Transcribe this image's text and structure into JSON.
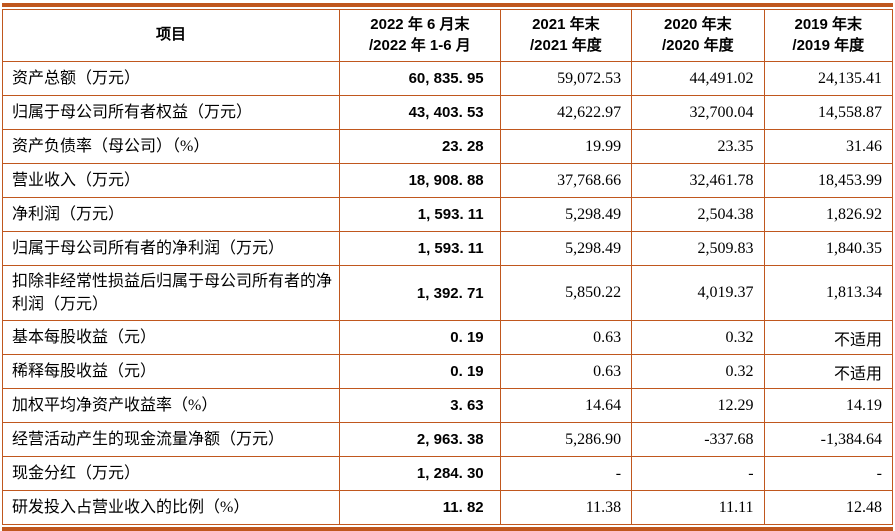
{
  "colors": {
    "border": "#C0571E",
    "text": "#000000",
    "background": "#FFFFFF"
  },
  "table": {
    "header": {
      "item_label": "项目",
      "periods": [
        {
          "line1": "2022 年 6 月末",
          "line2": "/2022 年 1-6 月"
        },
        {
          "line1": "2021 年末",
          "line2": "/2021 年度"
        },
        {
          "line1": "2020 年末",
          "line2": "/2020 年度"
        },
        {
          "line1": "2019 年末",
          "line2": "/2019 年度"
        }
      ]
    },
    "rows": [
      {
        "label": "资产总额（万元）",
        "values": [
          "60, 835. 95",
          "59,072.53",
          "44,491.02",
          "24,135.41"
        ]
      },
      {
        "label": "归属于母公司所有者权益（万元）",
        "values": [
          "43, 403. 53",
          "42,622.97",
          "32,700.04",
          "14,558.87"
        ]
      },
      {
        "label": "资产负债率（母公司）（%）",
        "values": [
          "23. 28",
          "19.99",
          "23.35",
          "31.46"
        ]
      },
      {
        "label": "营业收入（万元）",
        "values": [
          "18, 908. 88",
          "37,768.66",
          "32,461.78",
          "18,453.99"
        ]
      },
      {
        "label": "净利润（万元）",
        "values": [
          "1, 593. 11",
          "5,298.49",
          "2,504.38",
          "1,826.92"
        ]
      },
      {
        "label": "归属于母公司所有者的净利润（万元）",
        "values": [
          "1, 593. 11",
          "5,298.49",
          "2,509.83",
          "1,840.35"
        ]
      },
      {
        "label": "扣除非经常性损益后归属于母公司所有者的净利润（万元）",
        "values": [
          "1, 392. 71",
          "5,850.22",
          "4,019.37",
          "1,813.34"
        ]
      },
      {
        "label": "基本每股收益（元）",
        "values": [
          "0. 19",
          "0.63",
          "0.32",
          "不适用"
        ]
      },
      {
        "label": "稀释每股收益（元）",
        "values": [
          "0. 19",
          "0.63",
          "0.32",
          "不适用"
        ]
      },
      {
        "label": "加权平均净资产收益率（%）",
        "values": [
          "3. 63",
          "14.64",
          "12.29",
          "14.19"
        ]
      },
      {
        "label": "经营活动产生的现金流量净额（万元）",
        "values": [
          "2, 963. 38",
          "5,286.90",
          "-337.68",
          "-1,384.64"
        ]
      },
      {
        "label": "现金分红（万元）",
        "values": [
          "1, 284. 30",
          "-",
          "-",
          "-"
        ]
      },
      {
        "label": "研发投入占营业收入的比例（%）",
        "values": [
          "11. 82",
          "11.38",
          "11.11",
          "12.48"
        ]
      }
    ]
  }
}
